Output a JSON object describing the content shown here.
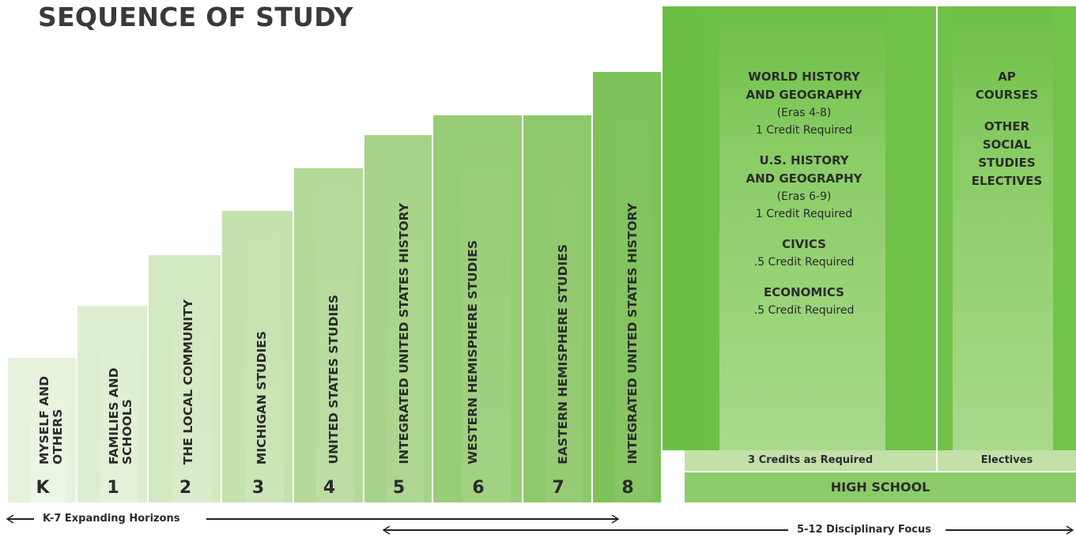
{
  "title": "SEQUENCE OF STUDY",
  "grades": [
    {
      "grade": "K",
      "label": "MYSELF AND OTHERS"
    },
    {
      "grade": "1",
      "label": "FAMILIES AND SCHOOLS"
    },
    {
      "grade": "2",
      "label": "THE LOCAL COMMUNITY"
    },
    {
      "grade": "3",
      "label": "MICHIGAN STUDIES"
    },
    {
      "grade": "4",
      "label": "UNITED STATES STUDIES"
    },
    {
      "grade": "5",
      "label": "INTEGRATED UNITED STATES HISTORY"
    },
    {
      "grade": "6",
      "label": "WESTERN HEMISPHERE STUDIES"
    },
    {
      "grade": "7",
      "label": "EASTERN HEMISPHERE STUDIES"
    },
    {
      "grade": "8",
      "label": "INTEGRATED UNITED STATES HISTORY"
    }
  ],
  "high_school": {
    "label": "HIGH SCHOOL",
    "required_footer": "3 Credits as Required",
    "electives_footer": "Electives",
    "required_courses": [
      {
        "name": "WORLD HISTORY AND GEOGRAPHY",
        "name_lines": [
          "WORLD HISTORY",
          "AND GEOGRAPHY"
        ],
        "eras": "(Eras 4-8)",
        "credit": "1 Credit Required"
      },
      {
        "name": "U.S. HISTORY AND GEOGRAPHY",
        "name_lines": [
          "U.S. HISTORY",
          "AND GEOGRAPHY"
        ],
        "eras": "(Eras 6-9)",
        "credit": "1 Credit Required"
      },
      {
        "name": "CIVICS",
        "name_lines": [
          "CIVICS"
        ],
        "eras": "",
        "credit": ".5 Credit Required"
      },
      {
        "name": "ECONOMICS",
        "name_lines": [
          "ECONOMICS"
        ],
        "eras": "",
        "credit": ".5 Credit Required"
      }
    ],
    "electives": {
      "ap_lines": [
        "AP",
        "COURSES"
      ],
      "other_lines": [
        "OTHER",
        "SOCIAL",
        "STUDIES",
        "ELECTIVES"
      ]
    }
  },
  "arrows": {
    "expanding": "K-7 Expanding Horizons",
    "disciplinary": "5-12 Disciplinary Focus"
  },
  "colors": {
    "lightest": "#e6f2dc",
    "darkest": "#6cbf45",
    "hs_footer": "#c2e0a8",
    "hs_bottom": "#8ccc68",
    "text": "#2b2b2b"
  }
}
